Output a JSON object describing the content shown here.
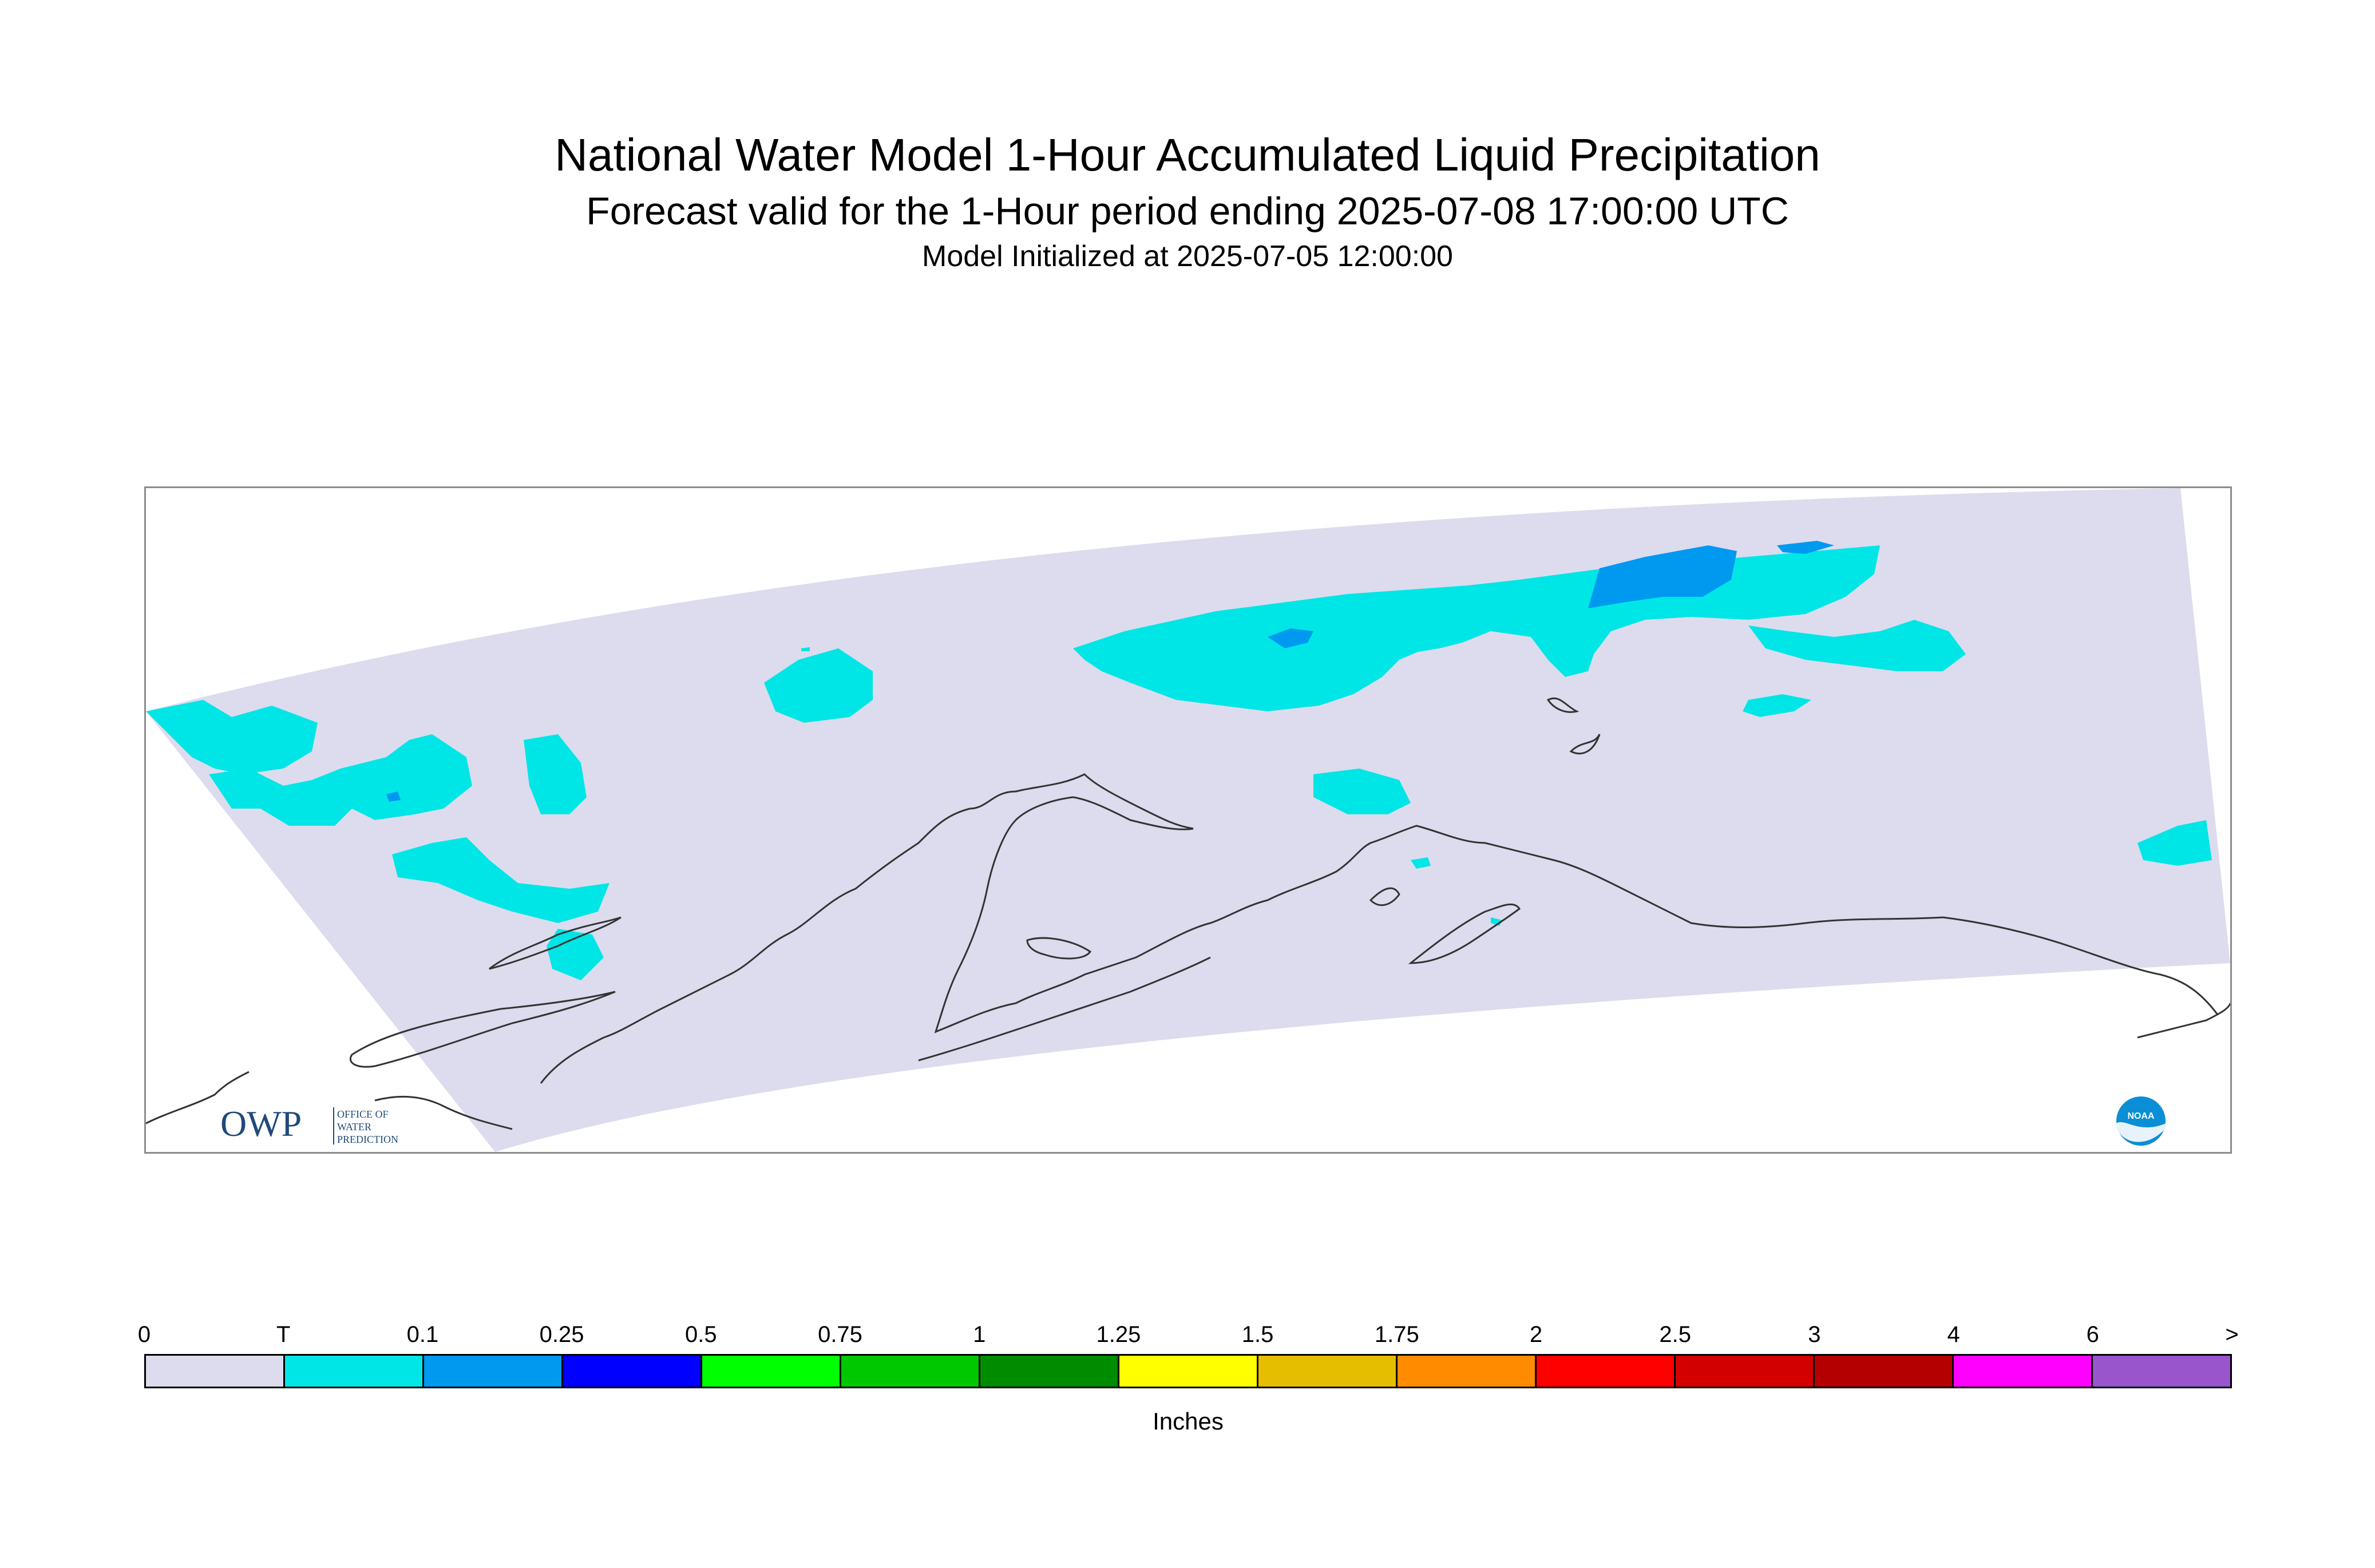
{
  "header": {
    "title": "National Water Model 1-Hour Accumulated Liquid Precipitation",
    "subtitle": "Forecast valid for the 1-Hour period ending 2025-07-08 17:00:00 UTC",
    "initialized": "Model Initialized at 2025-07-05 12:00:00"
  },
  "map": {
    "domain_fill_color": "#dcdcee",
    "precip_trace_color": "#00e6e6",
    "precip_light_color": "#0099f0",
    "coastline_color": "#333333",
    "logos": {
      "owp": {
        "icon": "owp-logo-icon",
        "text": "OWP",
        "subtext": "OFFICE OF WATER PREDICTION"
      },
      "noaa": {
        "icon": "noaa-logo-icon",
        "text": "NOAA"
      }
    }
  },
  "legend": {
    "ticks": [
      "0",
      "T",
      "0.1",
      "0.25",
      "0.5",
      "0.75",
      "1",
      "1.25",
      "1.5",
      "1.75",
      "2",
      "2.5",
      "3",
      "4",
      "6",
      ">"
    ],
    "colors": [
      "#dcdcee",
      "#00e6e6",
      "#0099f0",
      "#0000ff",
      "#00ff00",
      "#00c800",
      "#008c00",
      "#ffff00",
      "#e6be00",
      "#ff8c00",
      "#ff0000",
      "#d20000",
      "#b40000",
      "#ff00ff",
      "#9955cc"
    ],
    "units": "Inches"
  }
}
